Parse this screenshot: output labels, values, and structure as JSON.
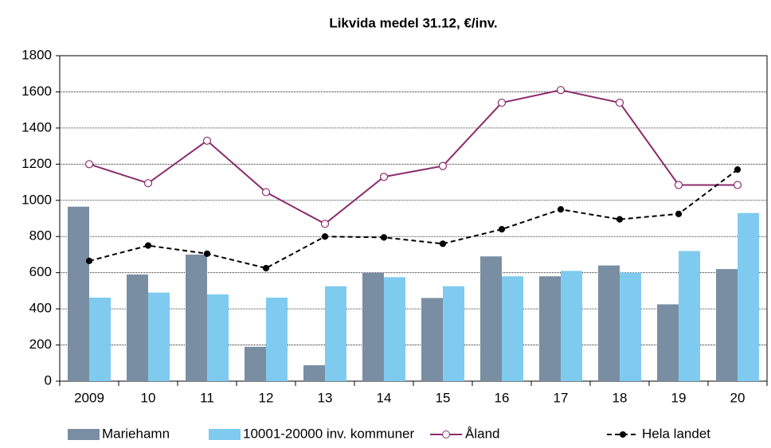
{
  "chart_data": {
    "type": "bar-line",
    "title": "Likvida medel 31.12, €/inv.",
    "categories": [
      "2009",
      "10",
      "11",
      "12",
      "13",
      "14",
      "15",
      "16",
      "17",
      "18",
      "19",
      "20"
    ],
    "series": [
      {
        "name": "Mariehamn",
        "type": "bar",
        "color": "#7a8ea3",
        "values": [
          965,
          590,
          700,
          190,
          88,
          600,
          460,
          690,
          580,
          640,
          425,
          620
        ]
      },
      {
        "name": "10001-20000 inv. kommuner",
        "type": "bar",
        "color": "#7fcbf0",
        "values": [
          462,
          490,
          480,
          462,
          525,
          575,
          525,
          580,
          610,
          600,
          720,
          930
        ]
      },
      {
        "name": "Åland",
        "type": "line",
        "color": "#8b2c6e",
        "marker": "open-circle",
        "dash": "solid",
        "values": [
          1200,
          1095,
          1330,
          1045,
          870,
          1130,
          1190,
          1540,
          1610,
          1540,
          1085,
          1085
        ]
      },
      {
        "name": "Hela landet",
        "type": "line",
        "color": "#000000",
        "marker": "filled-circle",
        "dash": "dashed",
        "values": [
          665,
          750,
          705,
          625,
          800,
          795,
          760,
          840,
          950,
          895,
          925,
          1170
        ]
      }
    ],
    "ylim": [
      0,
      1800
    ],
    "yticks": [
      0,
      200,
      400,
      600,
      800,
      1000,
      1200,
      1400,
      1600,
      1800
    ],
    "grid": true,
    "legend": "bottom"
  }
}
